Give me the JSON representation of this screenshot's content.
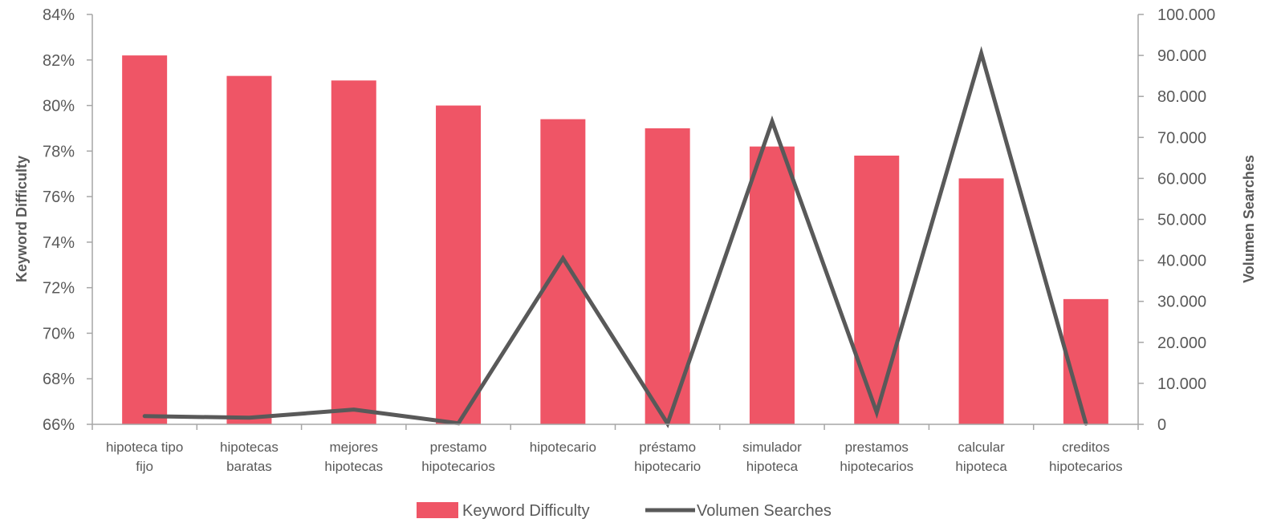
{
  "chart_data": {
    "type": "bar",
    "categories": [
      [
        "hipoteca tipo",
        "fijo"
      ],
      [
        "hipotecas",
        "baratas"
      ],
      [
        "mejores",
        "hipotecas"
      ],
      [
        "prestamo",
        "hipotecarios"
      ],
      [
        "hipotecario"
      ],
      [
        "préstamo",
        "hipotecario"
      ],
      [
        "simulador",
        "hipoteca"
      ],
      [
        "prestamos",
        "hipotecarios"
      ],
      [
        "calcular",
        "hipoteca"
      ],
      [
        "creditos",
        "hipotecarios"
      ]
    ],
    "series": [
      {
        "name": "Keyword Difficulty",
        "type": "bar",
        "axis": "left",
        "color": "#ef5566",
        "values": [
          82.2,
          81.3,
          81.1,
          80.0,
          79.4,
          79.0,
          78.2,
          77.8,
          76.8,
          71.5
        ]
      },
      {
        "name": "Volumen Searches",
        "type": "line",
        "axis": "right",
        "color": "#595959",
        "values": [
          2000,
          1600,
          3600,
          260,
          40500,
          170,
          73900,
          2900,
          90500,
          170
        ]
      }
    ],
    "y_left": {
      "label": "Keyword Difficulty",
      "min": 66,
      "max": 84,
      "step": 2,
      "ticks": [
        "66%",
        "68%",
        "70%",
        "72%",
        "74%",
        "76%",
        "78%",
        "80%",
        "82%",
        "84%"
      ]
    },
    "y_right": {
      "label": "Volumen Searches",
      "min": 0,
      "max": 100000,
      "step": 10000,
      "ticks": [
        "0",
        "10.000",
        "20.000",
        "30.000",
        "40.000",
        "50.000",
        "60.000",
        "70.000",
        "80.000",
        "90.000",
        "100.000"
      ]
    },
    "legend": {
      "position": "bottom",
      "items": [
        "Keyword Difficulty",
        "Volumen Searches"
      ]
    },
    "grid": false
  }
}
